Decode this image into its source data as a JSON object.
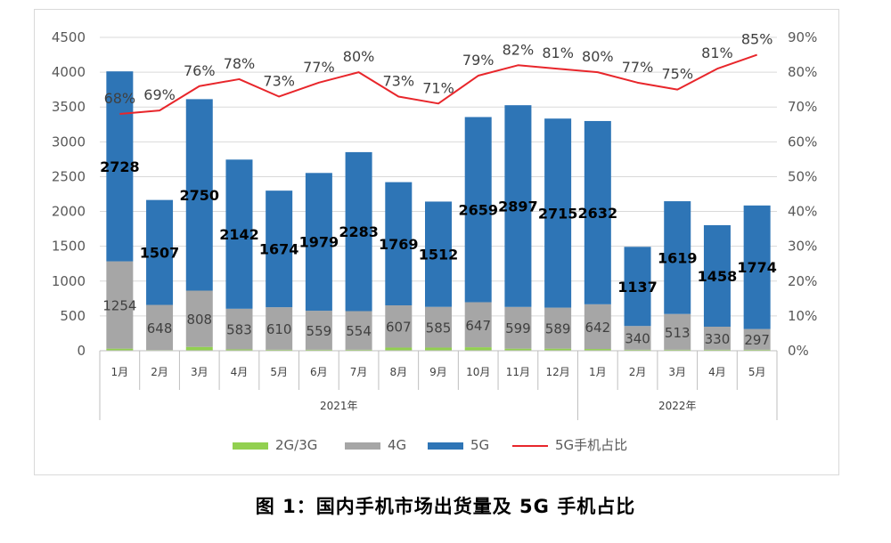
{
  "caption": "图 1：国内手机市场出货量及 5G 手机占比",
  "chart_data": {
    "type": "bar",
    "stacked": true,
    "categories": [
      "1月",
      "2月",
      "3月",
      "4月",
      "5月",
      "6月",
      "7月",
      "8月",
      "9月",
      "10月",
      "11月",
      "12月",
      "1月",
      "2月",
      "3月",
      "4月",
      "5月"
    ],
    "groups": [
      {
        "label": "2021年",
        "count": 12
      },
      {
        "label": "2022年",
        "count": 5
      }
    ],
    "series": [
      {
        "name": "2G/3G",
        "color": "#92d050",
        "values": [
          30,
          10,
          55,
          20,
          15,
          15,
          15,
          45,
          45,
          50,
          30,
          30,
          25,
          15,
          15,
          15,
          15
        ]
      },
      {
        "name": "4G",
        "color": "#a6a6a6",
        "values": [
          1254,
          648,
          808,
          583,
          610,
          559,
          554,
          607,
          585,
          647,
          599,
          589,
          642,
          340,
          513,
          330,
          297
        ]
      },
      {
        "name": "5G",
        "color": "#2e75b6",
        "values": [
          2728,
          1507,
          2750,
          2142,
          1674,
          1979,
          2283,
          1769,
          1512,
          2659,
          2897,
          2715,
          2632,
          1137,
          1619,
          1458,
          1774
        ]
      }
    ],
    "line_series": {
      "name": "5G手机占比",
      "color": "#e8262b",
      "values": [
        68,
        69,
        76,
        78,
        73,
        77,
        80,
        73,
        71,
        79,
        82,
        81,
        80,
        77,
        75,
        81,
        85
      ],
      "labels": [
        "68%",
        "69%",
        "76%",
        "78%",
        "73%",
        "77%",
        "80%",
        "73%",
        "71%",
        "79%",
        "82%",
        "81%",
        "80%",
        "77%",
        "75%",
        "81%",
        "85%"
      ]
    },
    "ylim_left": [
      0,
      4500
    ],
    "yticks_left": [
      0,
      500,
      1000,
      1500,
      2000,
      2500,
      3000,
      3500,
      4000,
      4500
    ],
    "ylim_right": [
      0,
      90
    ],
    "yticks_right": [
      "0%",
      "10%",
      "20%",
      "30%",
      "40%",
      "50%",
      "60%",
      "70%",
      "80%",
      "90%"
    ],
    "legend": {
      "position": "bottom",
      "items": [
        "2G/3G",
        "4G",
        "5G",
        "5G手机占比"
      ]
    },
    "grid": true
  }
}
